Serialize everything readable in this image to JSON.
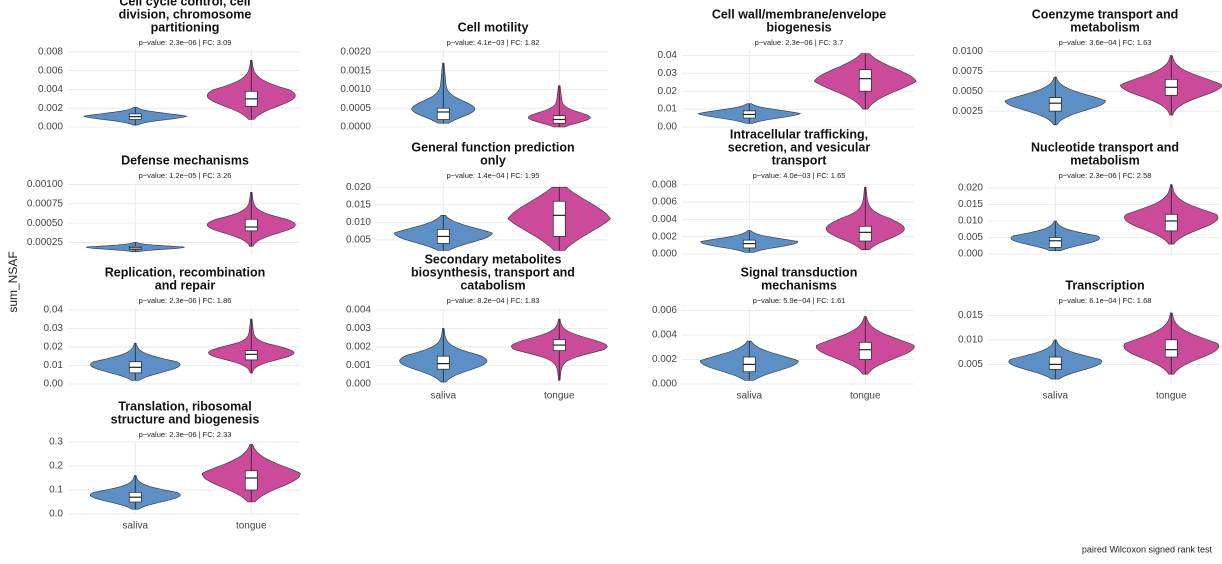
{
  "figure": {
    "y_label": "sum_NSAF",
    "caption": "paired Wilcoxon signed rank test"
  },
  "chart_data": [
    {
      "type": "violin",
      "title": [
        "Cell cycle control, cell",
        "division, chromosome",
        "partitioning"
      ],
      "subtitle": "p−value: 2.3e−06 | FC: 3.09",
      "colors": [
        "#5b8fc5",
        "#cc4a9a"
      ],
      "values": [
        [
          0.0002,
          0.0008,
          0.0011,
          0.0014,
          0.0021
        ],
        [
          0.0008,
          0.0022,
          0.003,
          0.0038,
          0.0071
        ]
      ],
      "ylim": [
        0,
        0.0082
      ],
      "yticks": [
        {
          "value": 0,
          "label": "0.000"
        },
        0.002,
        0.004,
        0.006,
        0.008
      ]
    },
    {
      "type": "violin",
      "title": [
        "Cell motility"
      ],
      "subtitle": "p−value: 4.1e−03 | FC: 1.82",
      "colors": [
        "#5b8fc5",
        "#cc4a9a"
      ],
      "values": [
        [
          0.0001,
          0.0002,
          0.0004,
          0.0005,
          0.0017
        ],
        [
          0,
          0.0001,
          0.0002,
          0.0003,
          0.0011
        ]
      ],
      "ylim": [
        0,
        0.00205
      ],
      "yticks": [
        {
          "value": 0,
          "label": "0.0000"
        },
        0.0005,
        {
          "value": 0.001,
          "label": "0.0010"
        },
        0.0015,
        {
          "value": 0.002,
          "label": "0.0020"
        }
      ]
    },
    {
      "type": "violin",
      "title": [
        "Cell wall/membrane/envelope",
        "biogenesis"
      ],
      "subtitle": "p−value: 2.3e−06 | FC: 3.7",
      "colors": [
        "#5b8fc5",
        "#cc4a9a"
      ],
      "values": [
        [
          0.002,
          0.005,
          0.007,
          0.009,
          0.013
        ],
        [
          0.01,
          0.02,
          0.027,
          0.032,
          0.041
        ]
      ],
      "ylim": [
        0,
        0.043
      ],
      "yticks": [
        {
          "value": 0,
          "label": "0.00"
        },
        0.01,
        0.02,
        0.03,
        0.04
      ]
    },
    {
      "type": "violin",
      "title": [
        "Coenzyme transport and",
        "metabolism"
      ],
      "subtitle": "p−value: 3.6e−04 | FC: 1.63",
      "colors": [
        "#5b8fc5",
        "#cc4a9a"
      ],
      "values": [
        [
          0.0008,
          0.0025,
          0.0035,
          0.0042,
          0.0068
        ],
        [
          0.002,
          0.0045,
          0.0055,
          0.0065,
          0.0095
        ]
      ],
      "ylim": [
        0.0005,
        0.0102
      ],
      "yticks": [
        0.0025,
        {
          "value": 0.005,
          "label": "0.0050"
        },
        0.0075,
        {
          "value": 0.01,
          "label": "0.0100"
        }
      ]
    },
    {
      "type": "violin",
      "title": [
        "Defense mechanisms"
      ],
      "subtitle": "p−value: 1.2e−05 | FC: 3.26",
      "colors": [
        "#5b8fc5",
        "#cc4a9a"
      ],
      "values": [
        [
          0.00013,
          0.00016,
          0.00018,
          0.0002,
          0.00025
        ],
        [
          0.0002,
          0.0004,
          0.00045,
          0.00055,
          0.0009
        ]
      ],
      "ylim": [
        0.0001,
        0.00102
      ],
      "yticks": [
        0.00025,
        {
          "value": 0.0005,
          "label": "0.00050"
        },
        0.00075,
        {
          "value": 0.001,
          "label": "0.00100"
        }
      ]
    },
    {
      "type": "violin",
      "title": [
        "General function prediction",
        "only"
      ],
      "subtitle": "p−value: 1.4e−04 | FC: 1.95",
      "colors": [
        "#5b8fc5",
        "#cc4a9a"
      ],
      "values": [
        [
          0.002,
          0.004,
          0.006,
          0.008,
          0.012
        ],
        [
          0.002,
          0.006,
          0.012,
          0.016,
          0.02
        ]
      ],
      "ylim": [
        0.001,
        0.0212
      ],
      "yticks": [
        0.005,
        {
          "value": 0.01,
          "label": "0.010"
        },
        0.015,
        {
          "value": 0.02,
          "label": "0.020"
        }
      ]
    },
    {
      "type": "violin",
      "title": [
        "Intracellular trafficking,",
        "secretion, and vesicular",
        "transport"
      ],
      "subtitle": "p−value: 4.0e−03 | FC: 1.65",
      "colors": [
        "#5b8fc5",
        "#cc4a9a"
      ],
      "values": [
        [
          0.0002,
          0.0007,
          0.0012,
          0.0016,
          0.0027
        ],
        [
          0.0005,
          0.0015,
          0.0025,
          0.0032,
          0.0077
        ]
      ],
      "ylim": [
        0,
        0.0082
      ],
      "yticks": [
        {
          "value": 0,
          "label": "0.000"
        },
        0.002,
        0.004,
        0.006,
        0.008
      ]
    },
    {
      "type": "violin",
      "title": [
        "Nucleotide transport and",
        "metabolism"
      ],
      "subtitle": "p−value: 2.3e−06 | FC: 2.58",
      "colors": [
        "#5b8fc5",
        "#cc4a9a"
      ],
      "values": [
        [
          0.001,
          0.002,
          0.004,
          0.005,
          0.01
        ],
        [
          0.003,
          0.007,
          0.01,
          0.012,
          0.021
        ]
      ],
      "ylim": [
        0,
        0.0215
      ],
      "yticks": [
        {
          "value": 0,
          "label": "0.000"
        },
        0.005,
        {
          "value": 0.01,
          "label": "0.010"
        },
        0.015,
        {
          "value": 0.02,
          "label": "0.020"
        }
      ]
    },
    {
      "type": "violin",
      "title": [
        "Replication, recombination",
        "and repair"
      ],
      "subtitle": "p−value: 2.3e−06 | FC: 1.86",
      "colors": [
        "#5b8fc5",
        "#cc4a9a"
      ],
      "values": [
        [
          0.002,
          0.006,
          0.009,
          0.012,
          0.022
        ],
        [
          0.006,
          0.013,
          0.016,
          0.018,
          0.035
        ]
      ],
      "ylim": [
        0,
        0.041
      ],
      "yticks": [
        {
          "value": 0,
          "label": "0.00"
        },
        0.01,
        0.02,
        0.03,
        0.04
      ]
    },
    {
      "type": "violin",
      "title": [
        "Secondary metabolites",
        "biosynthesis, transport and",
        "catabolism"
      ],
      "subtitle": "p−value: 8.2e−04 | FC: 1.83",
      "colors": [
        "#5b8fc5",
        "#cc4a9a"
      ],
      "categories": [
        "saliva",
        "tongue"
      ],
      "values": [
        [
          0.0001,
          0.0008,
          0.0011,
          0.0015,
          0.003
        ],
        [
          0.0002,
          0.0018,
          0.0021,
          0.0024,
          0.0035
        ]
      ],
      "ylim": [
        0,
        0.0041
      ],
      "yticks": [
        {
          "value": 0,
          "label": "0.000"
        },
        0.001,
        0.002,
        0.003,
        0.004
      ]
    },
    {
      "type": "violin",
      "title": [
        "Signal transduction",
        "mechanisms"
      ],
      "subtitle": "p−value: 5.9e−04 | FC: 1.61",
      "colors": [
        "#5b8fc5",
        "#cc4a9a"
      ],
      "categories": [
        "saliva",
        "tongue"
      ],
      "values": [
        [
          0.0003,
          0.001,
          0.0016,
          0.0022,
          0.0035
        ],
        [
          0.0008,
          0.002,
          0.0028,
          0.0034,
          0.0055
        ]
      ],
      "ylim": [
        0,
        0.0062
      ],
      "yticks": [
        {
          "value": 0,
          "label": "0.000"
        },
        0.002,
        0.004,
        0.006
      ]
    },
    {
      "type": "violin",
      "title": [
        "Transcription"
      ],
      "subtitle": "p−value: 6.1e−04 | FC: 1.68",
      "colors": [
        "#5b8fc5",
        "#cc4a9a"
      ],
      "categories": [
        "saliva",
        "tongue"
      ],
      "values": [
        [
          0.002,
          0.004,
          0.005,
          0.0065,
          0.01
        ],
        [
          0.003,
          0.0065,
          0.008,
          0.01,
          0.0155
        ]
      ],
      "ylim": [
        0.001,
        0.0165
      ],
      "yticks": [
        0.005,
        {
          "value": 0.01,
          "label": "0.010"
        },
        0.015
      ]
    },
    {
      "type": "violin",
      "title": [
        "Translation, ribosomal",
        "structure and biogenesis"
      ],
      "subtitle": "p−value: 2.3e−06 | FC: 2.33",
      "colors": [
        "#5b8fc5",
        "#cc4a9a"
      ],
      "categories": [
        "saliva",
        "tongue"
      ],
      "values": [
        [
          0.02,
          0.05,
          0.07,
          0.09,
          0.16
        ],
        [
          0.05,
          0.1,
          0.15,
          0.18,
          0.29
        ]
      ],
      "ylim": [
        0,
        0.3
      ],
      "yticks": [
        {
          "value": 0,
          "label": "0.0"
        },
        0.1,
        0.2,
        0.3
      ]
    }
  ]
}
